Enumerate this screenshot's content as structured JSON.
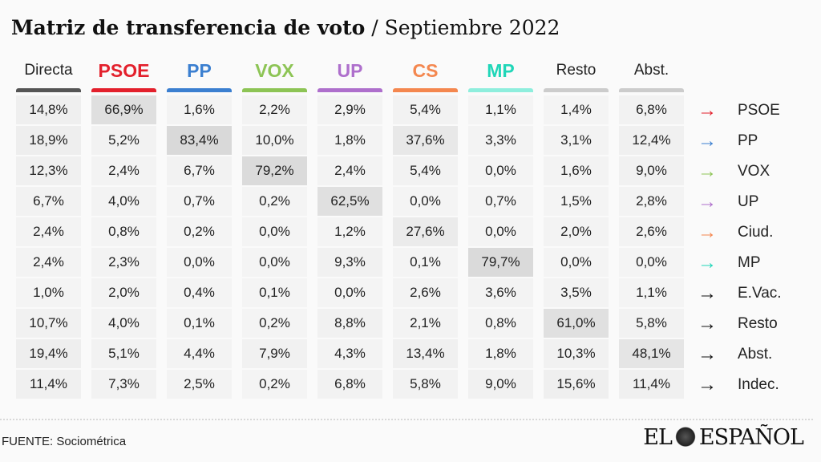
{
  "title": {
    "main": "Matriz de transferencia de voto",
    "separator": " / ",
    "sub": "Septiembre 2022"
  },
  "colors": {
    "PSOE": "#e3202c",
    "PP": "#3b7fd0",
    "VOX": "#8dc455",
    "UP": "#ae6fcc",
    "CS": "#f4874f",
    "MP": "#20d6b8",
    "neutral": "#555555",
    "grey": "#cccccc"
  },
  "chart_data": {
    "type": "table",
    "title": "Matriz de transferencia de voto / Septiembre 2022",
    "columns": [
      "Directa",
      "PSOE",
      "PP",
      "VOX",
      "UP",
      "CS",
      "MP",
      "Resto",
      "Abst."
    ],
    "column_colors": [
      "#555555",
      "#e3202c",
      "#3b7fd0",
      "#8dc455",
      "#ae6fcc",
      "#f4874f",
      "#8eeedd",
      "#cccccc",
      "#cccccc"
    ],
    "column_text_colors": [
      "#222222",
      "#e3202c",
      "#3b7fd0",
      "#8dc455",
      "#ae6fcc",
      "#f4874f",
      "#20d6b8",
      "#222222",
      "#222222"
    ],
    "column_is_party": [
      false,
      true,
      true,
      true,
      true,
      true,
      true,
      false,
      false
    ],
    "rows": [
      {
        "label": "PSOE",
        "arrow_color": "#e3202c",
        "values": [
          "14,8%",
          "66,9%",
          "1,6%",
          "2,2%",
          "2,9%",
          "5,4%",
          "1,1%",
          "1,4%",
          "6,8%"
        ]
      },
      {
        "label": "PP",
        "arrow_color": "#3b7fd0",
        "values": [
          "18,9%",
          "5,2%",
          "83,4%",
          "10,0%",
          "1,8%",
          "37,6%",
          "3,3%",
          "3,1%",
          "12,4%"
        ]
      },
      {
        "label": "VOX",
        "arrow_color": "#8dc455",
        "values": [
          "12,3%",
          "2,4%",
          "6,7%",
          "79,2%",
          "2,4%",
          "5,4%",
          "0,0%",
          "1,6%",
          "9,0%"
        ]
      },
      {
        "label": "UP",
        "arrow_color": "#ae6fcc",
        "values": [
          "6,7%",
          "4,0%",
          "0,7%",
          "0,2%",
          "62,5%",
          "0,0%",
          "0,7%",
          "1,5%",
          "2,8%"
        ]
      },
      {
        "label": "Ciud.",
        "arrow_color": "#f4874f",
        "values": [
          "2,4%",
          "0,8%",
          "0,2%",
          "0,0%",
          "1,2%",
          "27,6%",
          "0,0%",
          "2,0%",
          "2,6%"
        ]
      },
      {
        "label": "MP",
        "arrow_color": "#20d6b8",
        "values": [
          "2,4%",
          "2,3%",
          "0,0%",
          "0,0%",
          "9,3%",
          "0,1%",
          "79,7%",
          "0,0%",
          "0,0%"
        ]
      },
      {
        "label": "E.Vac.",
        "arrow_color": "#111111",
        "values": [
          "1,0%",
          "2,0%",
          "0,4%",
          "0,1%",
          "0,0%",
          "2,6%",
          "3,6%",
          "3,5%",
          "1,1%"
        ]
      },
      {
        "label": "Resto",
        "arrow_color": "#111111",
        "values": [
          "10,7%",
          "4,0%",
          "0,1%",
          "0,2%",
          "8,8%",
          "2,1%",
          "0,8%",
          "61,0%",
          "5,8%"
        ]
      },
      {
        "label": "Abst.",
        "arrow_color": "#111111",
        "values": [
          "19,4%",
          "5,1%",
          "4,4%",
          "7,9%",
          "4,3%",
          "13,4%",
          "1,8%",
          "10,3%",
          "48,1%"
        ]
      },
      {
        "label": "Indec.",
        "arrow_color": "#111111",
        "values": [
          "11,4%",
          "7,3%",
          "2,5%",
          "0,2%",
          "6,8%",
          "5,8%",
          "9,0%",
          "15,6%",
          "11,4%"
        ]
      }
    ]
  },
  "arrow_glyph": "→",
  "footer": {
    "source": "FUENTE: Sociométrica",
    "logo_text_left": "EL",
    "logo_text_right": "ESPAÑOL"
  }
}
